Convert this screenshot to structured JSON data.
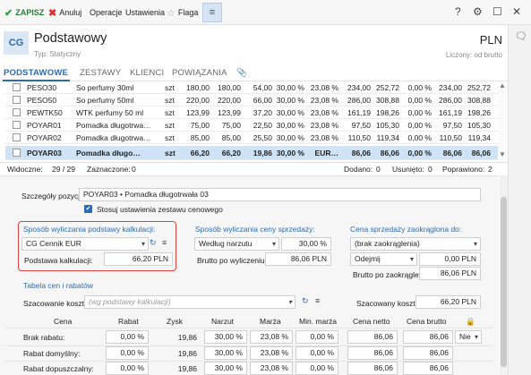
{
  "toolbar": {
    "save": "ZAPISZ",
    "cancel": "Anuluj",
    "operations": "Operacje",
    "settings": "Ustawienia",
    "flag": "Flaga",
    "help": "?",
    "colors": {
      "save_check": "#2a9d3a",
      "cancel_x": "#d9342b",
      "accent": "#2d6bb0",
      "highlight": "#e04040"
    }
  },
  "header": {
    "logo": "CG",
    "title": "Podstawowy",
    "subtitle": "Typ: Statyczny",
    "currency": "PLN",
    "pricing": "Liczony: od brutto"
  },
  "tabs": [
    "PODSTAWOWE",
    "ZESTAWY",
    "KLIENCI",
    "POWIĄZANIA"
  ],
  "table": {
    "rows": [
      {
        "code": "PESO30",
        "name": "So perfumy 30ml",
        "unit": "szt",
        "c1": "180,00",
        "c2": "180,00",
        "c3": "54,00",
        "c4": "30,00 %",
        "c5": "23,08 %",
        "c6": "234,00",
        "c7": "252,72",
        "c8": "0,00 %",
        "c9": "234,00",
        "c10": "252,72",
        "selected": false
      },
      {
        "code": "PESO50",
        "name": "So perfumy 50ml",
        "unit": "szt",
        "c1": "220,00",
        "c2": "220,00",
        "c3": "66,00",
        "c4": "30,00 %",
        "c5": "23,08 %",
        "c6": "286,00",
        "c7": "308,88",
        "c8": "0,00 %",
        "c9": "286,00",
        "c10": "308,88",
        "selected": false
      },
      {
        "code": "PEWTK50",
        "name": "WTK perfumy 50 ml",
        "unit": "szt",
        "c1": "123,99",
        "c2": "123,99",
        "c3": "37,20",
        "c4": "30,00 %",
        "c5": "23,08 %",
        "c6": "161,19",
        "c7": "198,26",
        "c8": "0,00 %",
        "c9": "161,19",
        "c10": "198,26",
        "selected": false
      },
      {
        "code": "POYAR01",
        "name": "Pomadka długotrwa…",
        "unit": "szt",
        "c1": "75,00",
        "c2": "75,00",
        "c3": "22,50",
        "c4": "30,00 %",
        "c5": "23,08 %",
        "c6": "97,50",
        "c7": "105,30",
        "c8": "0,00 %",
        "c9": "97,50",
        "c10": "105,30",
        "selected": false
      },
      {
        "code": "POYAR02",
        "name": "Pomadka długotrwa…",
        "unit": "szt",
        "c1": "85,00",
        "c2": "85,00",
        "c3": "25,50",
        "c4": "30,00 %",
        "c5": "23,08 %",
        "c6": "110,50",
        "c7": "119,34",
        "c8": "0,00 %",
        "c9": "110,50",
        "c10": "119,34",
        "selected": false
      },
      {
        "code": "POYAR03",
        "name": "Pomadka długo…",
        "unit": "szt",
        "c1": "66,20",
        "c2": "66,20",
        "c3": "19,86",
        "c4": "30,00 %",
        "c5": "EUR…",
        "c6": "86,06",
        "c7": "86,06",
        "c8": "0,00 %",
        "c9": "86,06",
        "c10": "86,06",
        "selected": true
      }
    ]
  },
  "status": {
    "visible_label": "Widoczne:",
    "visible_value": "29 / 29",
    "marked_label": "Zaznaczone:",
    "marked_value": "0",
    "added_label": "Dodano:",
    "added_value": "0",
    "removed_label": "Usunięto:",
    "removed_value": "0",
    "fixed_label": "Poprawiono:",
    "fixed_value": "2"
  },
  "detail": {
    "position_label": "Szczegóły pozycji:",
    "position_value": "POYAR03  •  Pomadka długotrwała 03",
    "apply_set_price": "Stosuj ustawienia zestawu cenowego",
    "calc_basis_title": "Sposób wyliczania podstawy kalkulacji:",
    "calc_basis_value": "CG Cennik EUR",
    "calc_base_label": "Podstawa kalkulacji:",
    "calc_base_value": "66,20 PLN",
    "sale_price_title": "Sposób wyliczania ceny sprzedaży:",
    "sale_method": "Według narzutu",
    "sale_method_pct": "30,00 %",
    "gross_before_label": "Brutto po wyliczeniu",
    "gross_before_value": "86,06 PLN",
    "rounded_title": "Cena sprzedaży zaokrąglona do:",
    "rounding": "(brak zaokrąglenia)",
    "rounding_mode": "Odejmij",
    "rounding_amount": "0,00 PLN",
    "gross_after_label": "Brutto po zaokrągleniu",
    "gross_after_value": "86,06 PLN",
    "price_table_title": "Tabela cen i rabatów",
    "cost_estimate_label": "Szacowanie kosztu:",
    "cost_estimate_placeholder": "(wg podstawy kalkulacji)",
    "estimated_cost_label": "Szacowany koszt:",
    "estimated_cost_value": "66,20 PLN"
  },
  "price_table": {
    "headers": [
      "Cena",
      "Rabat",
      "Zysk",
      "Narzut",
      "Marża",
      "Min. marża",
      "Cena netto",
      "Cena brutto"
    ],
    "rows": [
      {
        "label": "Brak rabatu:",
        "rabat": "0,00 %",
        "zysk": "19,86",
        "narzut": "30,00 %",
        "marza": "23,08 %",
        "min_marza": "0,00 %",
        "netto": "86,06",
        "brutto": "86,06",
        "extra": "Nie"
      },
      {
        "label": "Rabat domyślny:",
        "rabat": "0,00 %",
        "zysk": "19,86",
        "narzut": "30,00 %",
        "marza": "23,08 %",
        "min_marza": "0,00 %",
        "netto": "86,06",
        "brutto": "86,06",
        "extra": ""
      },
      {
        "label": "Rabat dopuszczalny:",
        "rabat": "0,00 %",
        "zysk": "19,86",
        "narzut": "30,00 %",
        "marza": "23,08 %",
        "min_marza": "0,00 %",
        "netto": "86,06",
        "brutto": "86,06",
        "extra": ""
      }
    ]
  }
}
